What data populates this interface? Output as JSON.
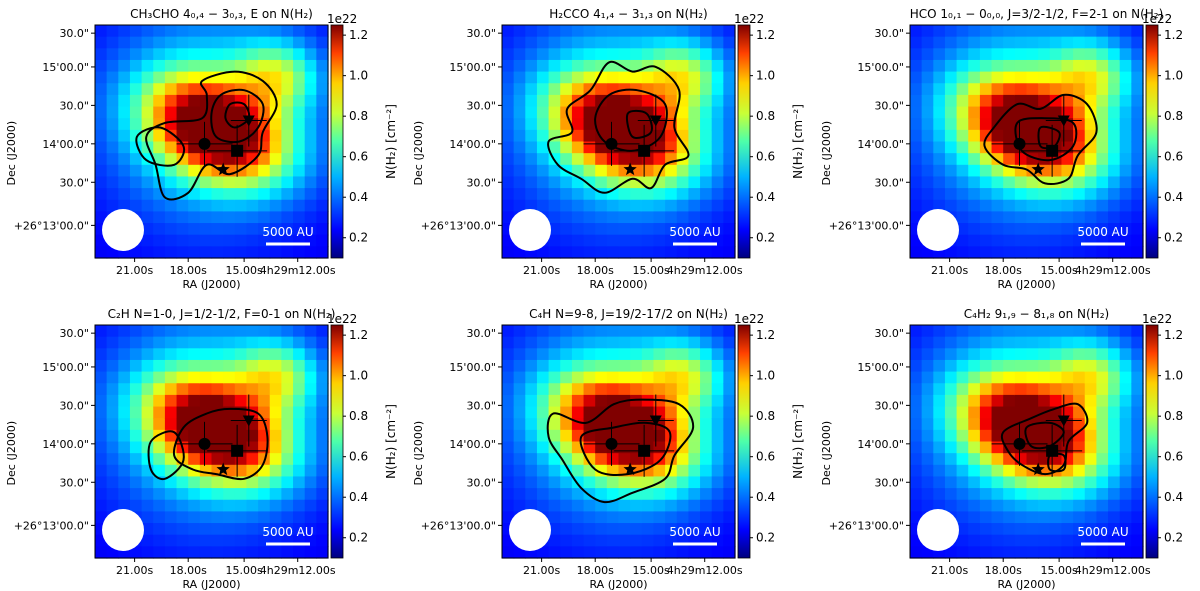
{
  "figure": {
    "beam_label": "5000 AU",
    "xlabel": "RA (J2000)",
    "ylabel": "Dec (J2000)",
    "x_ticks": [
      "21.00s",
      "18.00s",
      "15.00s",
      "4h29m12.00s"
    ],
    "y_ticks": [
      "30.0\"",
      "15'00.0\"",
      "30.0\"",
      "14'00.0\"",
      "30.0\"",
      "+26°13'00.0\""
    ],
    "colorbar": {
      "label": "N(H₂) [cm⁻²]",
      "offset": "1e22",
      "ticks": [
        "0.2",
        "0.4",
        "0.6",
        "0.8",
        "1.0",
        "1.2"
      ],
      "range": [
        0.1,
        1.25
      ]
    },
    "colors": {
      "contour": "#000000",
      "beam": "#ffffff",
      "axes": "#000000"
    }
  },
  "chart_data": [
    {
      "type": "heatmap",
      "background": "N(H2) column density",
      "title": "CH₃CHO 4₀,₄ − 3₀,₃, E on N(H₂)",
      "contour_levels": 3
    },
    {
      "type": "heatmap",
      "background": "N(H2) column density",
      "title": "H₂CCO 4₁,₄ − 3₁,₃ on N(H₂)",
      "contour_levels": 3
    },
    {
      "type": "heatmap",
      "background": "N(H2) column density",
      "title": "HCO 1₀,₁ − 0₀,₀, J=3/2-1/2, F=2-1 on N(H₂)",
      "contour_levels": 3
    },
    {
      "type": "heatmap",
      "background": "N(H2) column density",
      "title": "C₂H N=1-0, J=1/2-1/2, F=0-1 on N(H₂)",
      "contour_levels": 2
    },
    {
      "type": "heatmap",
      "background": "N(H2) column density",
      "title": "C₄H N=9-8, J=19/2-17/2 on N(H₂)",
      "contour_levels": 2
    },
    {
      "type": "heatmap",
      "background": "N(H2) column density",
      "title": "C₄H₂ 9₁,₉ − 8₁,₈ on N(H₂)",
      "contour_levels": 3
    }
  ]
}
